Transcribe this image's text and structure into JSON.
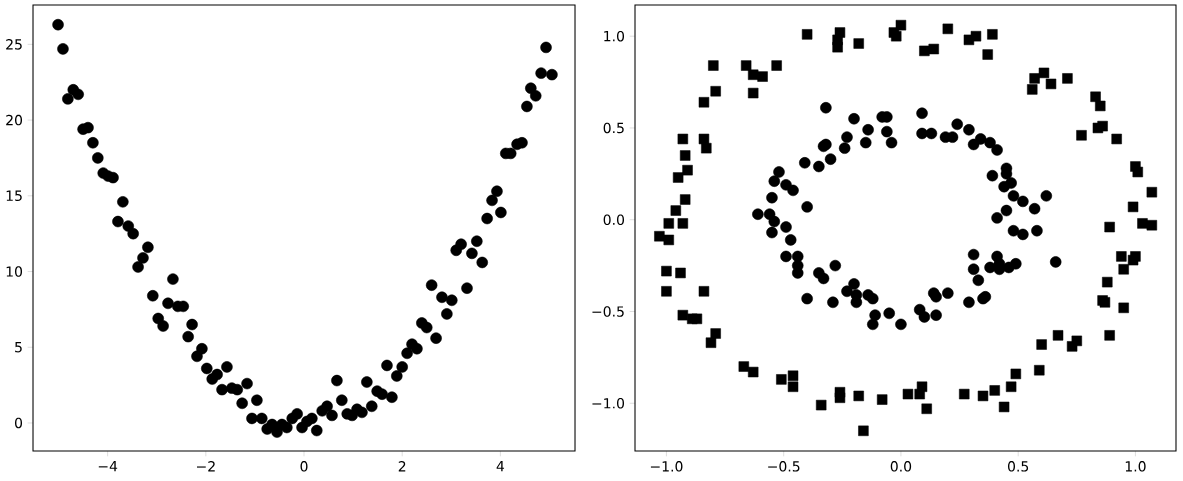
{
  "chart_data": [
    {
      "type": "scatter",
      "color": "#000000",
      "marker": "circle",
      "xlim": [
        -5.52,
        5.52
      ],
      "ylim": [
        -1.85,
        27.6
      ],
      "xticks": [
        {
          "value": -4,
          "label": "−4"
        },
        {
          "value": -2,
          "label": "−2"
        },
        0,
        2,
        4
      ],
      "yticks": [
        0,
        5,
        10,
        15,
        20,
        25
      ],
      "x": [
        -5.01,
        -4.91,
        -4.81,
        -4.7,
        -4.6,
        -4.5,
        -4.4,
        -4.3,
        -4.2,
        -4.09,
        -3.99,
        -3.89,
        -3.79,
        -3.69,
        -3.58,
        -3.48,
        -3.38,
        -3.28,
        -3.18,
        -3.08,
        -2.97,
        -2.87,
        -2.77,
        -2.67,
        -2.57,
        -2.46,
        -2.36,
        -2.28,
        -2.18,
        -2.08,
        -1.98,
        -1.87,
        -1.77,
        -1.67,
        -1.57,
        -1.47,
        -1.36,
        -1.26,
        -1.16,
        -1.06,
        -0.96,
        -0.86,
        -0.75,
        -0.65,
        -0.55,
        -0.45,
        -0.35,
        -0.24,
        -0.14,
        -0.04,
        0.06,
        0.16,
        0.26,
        0.37,
        0.47,
        0.57,
        0.67,
        0.77,
        0.88,
        0.98,
        1.08,
        1.18,
        1.28,
        1.38,
        1.49,
        1.59,
        1.69,
        1.79,
        1.89,
        2.0,
        2.1,
        2.2,
        2.3,
        2.4,
        2.5,
        2.6,
        2.69,
        2.81,
        2.91,
        3.01,
        3.1,
        3.2,
        3.32,
        3.42,
        3.52,
        3.63,
        3.73,
        3.83,
        3.93,
        4.01,
        4.11,
        4.21,
        4.34,
        4.44,
        4.54,
        4.62,
        4.72,
        4.83,
        4.93,
        5.05
      ],
      "values": [
        26.3,
        24.7,
        21.4,
        22.0,
        21.7,
        19.4,
        19.5,
        18.5,
        17.5,
        16.5,
        16.3,
        16.2,
        13.3,
        14.6,
        13.0,
        12.5,
        10.3,
        10.9,
        11.6,
        8.4,
        6.9,
        6.4,
        7.9,
        9.5,
        7.7,
        7.7,
        5.7,
        6.5,
        4.4,
        4.9,
        3.6,
        2.9,
        3.2,
        2.2,
        3.7,
        2.3,
        2.2,
        1.3,
        2.6,
        0.3,
        1.5,
        0.3,
        -0.4,
        -0.1,
        -0.6,
        -0.1,
        -0.3,
        0.3,
        0.6,
        -0.3,
        0.1,
        0.3,
        -0.5,
        0.8,
        1.1,
        0.5,
        2.8,
        1.5,
        0.6,
        0.5,
        0.9,
        0.7,
        2.7,
        1.1,
        2.1,
        1.9,
        3.8,
        1.7,
        3.1,
        3.7,
        4.6,
        5.2,
        4.9,
        6.6,
        6.3,
        9.1,
        5.6,
        8.3,
        7.2,
        8.1,
        11.4,
        11.8,
        8.9,
        11.2,
        12.0,
        10.6,
        13.5,
        14.7,
        15.3,
        13.9,
        17.8,
        17.8,
        18.4,
        18.5,
        20.9,
        22.1,
        21.6,
        23.1,
        24.8,
        23.0
      ]
    },
    {
      "type": "scatter",
      "xlim": [
        -1.134,
        1.173
      ],
      "ylim": [
        -1.26,
        1.17
      ],
      "xticks": [
        {
          "value": -1,
          "label": "−1.0"
        },
        {
          "value": -0.5,
          "label": "−0.5"
        },
        {
          "value": 0,
          "label": "0.0"
        },
        {
          "value": 0.5,
          "label": "0.5"
        },
        {
          "value": 1,
          "label": "1.0"
        }
      ],
      "yticks": [
        {
          "value": -1,
          "label": "−1.0"
        },
        {
          "value": -0.5,
          "label": "−0.5"
        },
        {
          "value": 0,
          "label": "0.0"
        },
        {
          "value": 0.5,
          "label": "0.5"
        },
        {
          "value": 1,
          "label": "1.0"
        }
      ],
      "series": [
        {
          "color": "#000000",
          "marker": "square",
          "x": [
            -0.4,
            -0.26,
            -0.27,
            -0.27,
            -0.18,
            -0.03,
            0.0,
            -0.02,
            -0.8,
            -0.66,
            -0.63,
            -0.59,
            -0.53,
            -0.79,
            -0.63,
            -0.84,
            -0.93,
            -0.84,
            -0.83,
            -0.92,
            -0.91,
            -0.95,
            -0.92,
            -0.96,
            -0.99,
            -0.93,
            -1.03,
            -0.99,
            -1.0,
            -0.94,
            -1.0,
            -0.84,
            -0.93,
            -0.89,
            -0.87,
            -0.79,
            -0.81,
            -0.67,
            -0.63,
            -0.51,
            -0.46,
            -0.46,
            -0.34,
            -0.26,
            -0.26,
            -0.18,
            -0.16,
            -0.08,
            0.03,
            0.09,
            0.08,
            0.11,
            0.27,
            0.35,
            0.4,
            0.44,
            0.47,
            0.49,
            0.59,
            0.6,
            0.67,
            0.73,
            0.75,
            0.89,
            0.95,
            0.86,
            0.87,
            0.88,
            0.95,
            0.94,
            0.99,
            1.0,
            0.89,
            1.03,
            1.07,
            0.1,
            0.14,
            0.2,
            0.29,
            0.32,
            0.39,
            0.37,
            0.57,
            0.61,
            0.56,
            0.64,
            0.71,
            0.83,
            0.85,
            0.77,
            0.84,
            0.86,
            0.92,
            1.0,
            1.01,
            1.07,
            0.99
          ],
          "values": [
            1.01,
            1.02,
            0.98,
            0.94,
            0.96,
            1.02,
            1.06,
            1.0,
            0.84,
            0.84,
            0.79,
            0.78,
            0.84,
            0.7,
            0.69,
            0.64,
            0.44,
            0.44,
            0.39,
            0.35,
            0.27,
            0.23,
            0.11,
            0.05,
            -0.02,
            -0.02,
            -0.09,
            -0.11,
            -0.28,
            -0.29,
            -0.39,
            -0.39,
            -0.52,
            -0.54,
            -0.54,
            -0.62,
            -0.67,
            -0.8,
            -0.83,
            -0.87,
            -0.85,
            -0.91,
            -1.01,
            -0.94,
            -0.97,
            -0.96,
            -1.15,
            -0.98,
            -0.95,
            -0.91,
            -0.95,
            -1.03,
            -0.95,
            -0.96,
            -0.93,
            -1.02,
            -0.91,
            -0.84,
            -0.82,
            -0.68,
            -0.63,
            -0.69,
            -0.66,
            -0.63,
            -0.48,
            -0.44,
            -0.45,
            -0.34,
            -0.27,
            -0.2,
            -0.22,
            -0.2,
            -0.04,
            -0.02,
            -0.03,
            0.92,
            0.93,
            1.04,
            0.98,
            1.0,
            1.01,
            0.9,
            0.77,
            0.8,
            0.71,
            0.74,
            0.77,
            0.67,
            0.62,
            0.46,
            0.5,
            0.51,
            0.44,
            0.29,
            0.26,
            0.15,
            0.07
          ]
        },
        {
          "color": "#000000",
          "marker": "circle",
          "x": [
            -0.32,
            -0.2,
            -0.08,
            -0.06,
            -0.14,
            -0.06,
            -0.04,
            -0.15,
            -0.23,
            -0.24,
            -0.33,
            -0.32,
            -0.41,
            -0.35,
            -0.3,
            -0.52,
            -0.54,
            -0.49,
            -0.46,
            -0.55,
            -0.4,
            -0.61,
            -0.56,
            -0.54,
            -0.49,
            -0.55,
            -0.47,
            -0.49,
            -0.44,
            -0.44,
            -0.44,
            -0.4,
            -0.35,
            -0.33,
            -0.28,
            -0.29,
            -0.23,
            -0.2,
            -0.19,
            -0.19,
            -0.14,
            -0.12,
            -0.11,
            -0.12,
            -0.05,
            0.0,
            0.08,
            0.1,
            0.15,
            0.14,
            0.15,
            0.2,
            0.29,
            0.35,
            0.36,
            0.33,
            0.31,
            0.31,
            0.38,
            0.41,
            0.42,
            0.42,
            0.46,
            0.49,
            0.66,
            0.41,
            0.48,
            0.52,
            0.58,
            0.09,
            0.09,
            0.13,
            0.19,
            0.22,
            0.24,
            0.29,
            0.31,
            0.34,
            0.38,
            0.41,
            0.45,
            0.45,
            0.39,
            0.44,
            0.47,
            0.48,
            0.52,
            0.57,
            0.62,
            0.45
          ],
          "values": [
            0.61,
            0.55,
            0.56,
            0.56,
            0.49,
            0.48,
            0.42,
            0.42,
            0.45,
            0.39,
            0.4,
            0.41,
            0.31,
            0.29,
            0.33,
            0.26,
            0.21,
            0.19,
            0.16,
            0.12,
            0.07,
            0.03,
            0.03,
            -0.01,
            -0.04,
            -0.07,
            -0.11,
            -0.2,
            -0.2,
            -0.25,
            -0.29,
            -0.43,
            -0.29,
            -0.32,
            -0.25,
            -0.45,
            -0.39,
            -0.35,
            -0.41,
            -0.45,
            -0.41,
            -0.43,
            -0.52,
            -0.57,
            -0.51,
            -0.57,
            -0.49,
            -0.53,
            -0.52,
            -0.4,
            -0.42,
            -0.4,
            -0.45,
            -0.43,
            -0.42,
            -0.33,
            -0.27,
            -0.19,
            -0.26,
            -0.2,
            -0.27,
            -0.24,
            -0.26,
            -0.24,
            -0.23,
            0.01,
            -0.06,
            -0.08,
            -0.06,
            0.58,
            0.47,
            0.47,
            0.45,
            0.45,
            0.52,
            0.49,
            0.41,
            0.44,
            0.42,
            0.38,
            0.28,
            0.25,
            0.24,
            0.18,
            0.2,
            0.13,
            0.1,
            0.06,
            0.13,
            0.05
          ]
        }
      ]
    }
  ]
}
